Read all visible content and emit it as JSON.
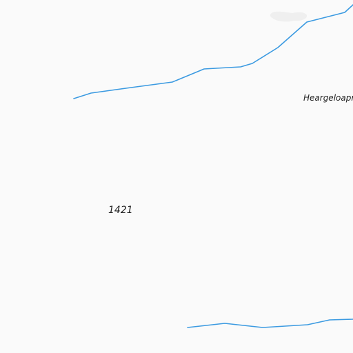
{
  "map": {
    "background_color": "#fafafa",
    "water_color": "#3b9ae1",
    "snow_patch_color": "#efefef",
    "label_color": "#1f1f1f",
    "place_label": "Heargeloapr",
    "elevation_label": "1421",
    "features": [
      {
        "name": "stream-north",
        "type": "waterway"
      },
      {
        "name": "stream-south",
        "type": "waterway"
      },
      {
        "name": "snow-patch",
        "type": "glacier"
      }
    ]
  }
}
